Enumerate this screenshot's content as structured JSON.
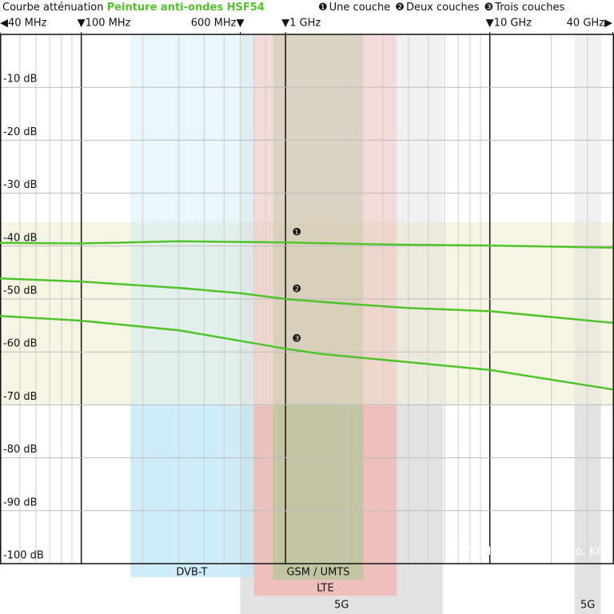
{
  "chart_data": {
    "type": "line",
    "title": "Courbe atténuation",
    "subtitle": "Peinture anti-ondes HSF54",
    "credit": "© YSHIELD GmbH & Co. KG",
    "log_x": true,
    "xlim": [
      40,
      40000
    ],
    "xticks": [
      {
        "value": 40,
        "label": "◀40 MHz"
      },
      {
        "value": 100,
        "label": "▼100 MHz"
      },
      {
        "value": 600,
        "label": "600 MHz▼"
      },
      {
        "value": 1000,
        "label": "▼1 GHz"
      },
      {
        "value": 10000,
        "label": "▼10 GHz"
      },
      {
        "value": 40000,
        "label": "40 GHz▶"
      }
    ],
    "ylim": [
      -100,
      0
    ],
    "yticks": [
      {
        "value": -10,
        "label": "-10 dB"
      },
      {
        "value": -20,
        "label": "-20 dB"
      },
      {
        "value": -30,
        "label": "-30 dB"
      },
      {
        "value": -40,
        "label": "-40 dB"
      },
      {
        "value": -50,
        "label": "-50 dB"
      },
      {
        "value": -60,
        "label": "-60 dB"
      },
      {
        "value": -70,
        "label": "-70 dB"
      },
      {
        "value": -80,
        "label": "-80 dB"
      },
      {
        "value": -90,
        "label": "-90 dB"
      },
      {
        "value": -100,
        "label": "-100 dB"
      }
    ],
    "grid": true,
    "bands": [
      {
        "label": "5G",
        "from": 600,
        "to": 5900,
        "color": "#d8d8d8"
      },
      {
        "label": "5G",
        "from": 26000,
        "to": 35000,
        "color": "#d8d8d8"
      },
      {
        "label": "DVB-T",
        "from": 174,
        "to": 694,
        "color": "#bfe6f7"
      },
      {
        "label": "LTE",
        "from": 700,
        "to": 3500,
        "color": "#f3b3ad"
      },
      {
        "label": "GSM / UMTS",
        "from": 870,
        "to": 2400,
        "color": "#b2c79a"
      }
    ],
    "series": [
      {
        "name": "Une couche",
        "marker": "❶",
        "color": "#4fc42a",
        "x": [
          40,
          100,
          300,
          1000,
          3000,
          10000,
          40000
        ],
        "values": [
          -39.4,
          -39.5,
          -39.1,
          -39.3,
          -39.7,
          -39.9,
          -40.3
        ]
      },
      {
        "name": "Deux couches",
        "marker": "❷",
        "color": "#4fc42a",
        "x": [
          40,
          100,
          300,
          600,
          1000,
          2000,
          4000,
          10000,
          40000
        ],
        "values": [
          -46.1,
          -46.7,
          -47.9,
          -48.9,
          -50.0,
          -50.9,
          -51.7,
          -52.3,
          -54.5
        ]
      },
      {
        "name": "Trois couches",
        "marker": "❸",
        "color": "#4fc42a",
        "x": [
          40,
          100,
          300,
          1000,
          1500,
          10000,
          40000
        ],
        "values": [
          -53.2,
          -54.1,
          -55.9,
          -59.4,
          -60.4,
          -63.4,
          -67.1
        ]
      }
    ]
  }
}
